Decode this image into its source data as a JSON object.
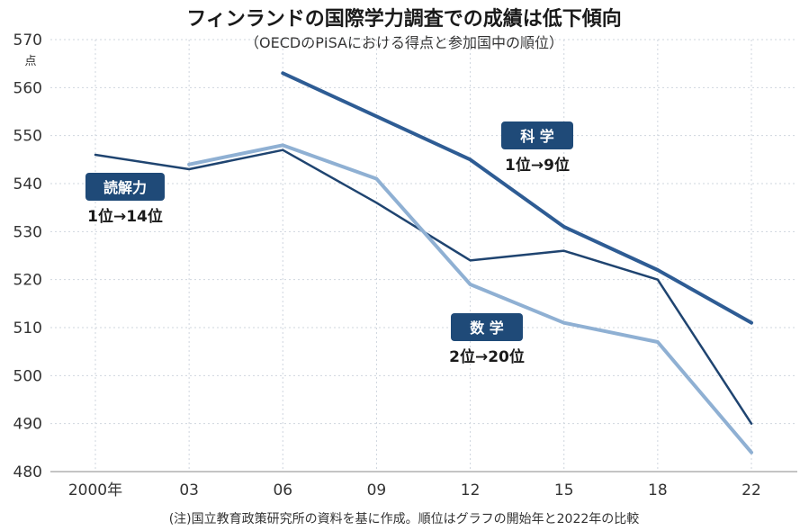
{
  "chart_data": {
    "type": "line",
    "title": "フィンランドの国際学力調査での成績は低下傾向",
    "subtitle": "（OECDのPISAにおける得点と参加国中の順位）",
    "ylabel": "点",
    "ylim": [
      480,
      570
    ],
    "yticks": [
      480,
      490,
      500,
      510,
      520,
      530,
      540,
      550,
      560,
      570
    ],
    "x": [
      2000,
      2003,
      2006,
      2009,
      2012,
      2015,
      2018,
      2022
    ],
    "xtick_labels": [
      "2000年",
      "03",
      "06",
      "09",
      "12",
      "15",
      "18",
      "22"
    ],
    "grid": true,
    "note": "(注)国立教育政策研究所の資料を基に作成。順位はグラフの開始年と2022年の比較",
    "series": [
      {
        "name": "科 学",
        "rank": "1位→9位",
        "color": "#2e5c94",
        "values": [
          null,
          null,
          563,
          554,
          545,
          531,
          522,
          511
        ]
      },
      {
        "name": "読解力",
        "rank": "1位→14位",
        "color": "#1f4470",
        "values": [
          546,
          543,
          547,
          536,
          524,
          526,
          520,
          490
        ]
      },
      {
        "name": "数 学",
        "rank": "2位→20位",
        "color": "#8fb0d3",
        "values": [
          null,
          544,
          548,
          541,
          519,
          511,
          507,
          484
        ]
      }
    ]
  },
  "colors": {
    "badge_bg": "#1f4a78",
    "grid": "#cfd6de",
    "axis": "#888888"
  }
}
